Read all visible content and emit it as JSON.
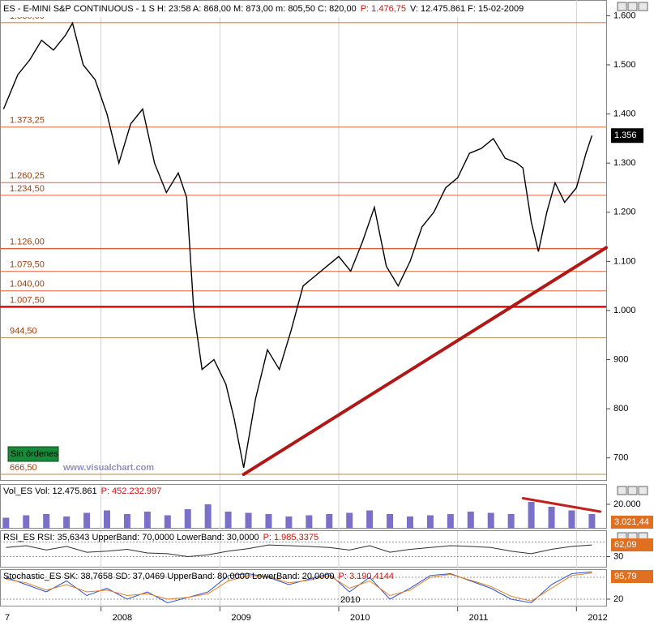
{
  "chart_data": [
    {
      "type": "line",
      "header": [
        {
          "text": "ES - E-MINI S&P CONTINUOUS - 1 S H: 23:58 A: 868,00 M: 873,00 m: 805,50 C: 820,00",
          "color": "#000000"
        },
        {
          "text": "P: 1.476,75",
          "color": "#d01010"
        },
        {
          "text": "V: 12.475.861 F: 15-02-2009",
          "color": "#000000"
        }
      ],
      "x": [
        2007.18,
        2007.3,
        2007.4,
        2007.5,
        2007.6,
        2007.7,
        2007.76,
        2007.85,
        2007.95,
        2008.05,
        2008.15,
        2008.25,
        2008.35,
        2008.45,
        2008.55,
        2008.65,
        2008.72,
        2008.78,
        2008.85,
        2008.95,
        2009.05,
        2009.12,
        2009.2,
        2009.3,
        2009.4,
        2009.5,
        2009.6,
        2009.7,
        2009.8,
        2009.9,
        2010.0,
        2010.1,
        2010.2,
        2010.3,
        2010.4,
        2010.5,
        2010.6,
        2010.7,
        2010.8,
        2010.9,
        2011.0,
        2011.1,
        2011.2,
        2011.3,
        2011.4,
        2011.5,
        2011.55,
        2011.62,
        2011.68,
        2011.75,
        2011.82,
        2011.9,
        2012.0,
        2012.08,
        2012.13
      ],
      "y": [
        1410,
        1480,
        1510,
        1550,
        1530,
        1560,
        1585,
        1500,
        1470,
        1400,
        1300,
        1380,
        1410,
        1300,
        1240,
        1280,
        1230,
        1000,
        880,
        900,
        850,
        780,
        680,
        820,
        920,
        880,
        960,
        1050,
        1070,
        1090,
        1110,
        1080,
        1140,
        1210,
        1090,
        1050,
        1100,
        1170,
        1200,
        1250,
        1270,
        1320,
        1330,
        1350,
        1310,
        1300,
        1290,
        1180,
        1120,
        1200,
        1260,
        1220,
        1250,
        1320,
        1356
      ],
      "color": "#000000",
      "xlim": [
        2007.15,
        2012.25
      ],
      "xticks": [
        {
          "value": 2007,
          "label": "7"
        },
        2008,
        2009,
        2010,
        2011,
        2012
      ],
      "ylim": [
        655,
        1632
      ],
      "yticks": [
        700,
        800,
        900,
        {
          "value": 1000,
          "label": "1.000"
        },
        {
          "value": 1100,
          "label": "1.100"
        },
        {
          "value": 1200,
          "label": "1.200"
        },
        {
          "value": 1300,
          "label": "1.300"
        },
        {
          "value": 1400,
          "label": "1.400"
        },
        {
          "value": 1500,
          "label": "1.500"
        },
        {
          "value": 1600,
          "label": "1.600"
        }
      ],
      "grid": "x",
      "levels": [
        {
          "value": 1586,
          "label": "1.586,00",
          "color": "#e0603a",
          "width": 1
        },
        {
          "value": 1373.25,
          "label": "1.373,25",
          "color": "#e0603a",
          "width": 1
        },
        {
          "value": 1260.25,
          "label": "1.260,25",
          "color": "#e0603a",
          "width": 1
        },
        {
          "value": 1234.5,
          "label": "1.234,50",
          "color": "#e0603a",
          "width": 1
        },
        {
          "value": 1126,
          "label": "1.126,00",
          "color": "#e0603a",
          "width": 1.5
        },
        {
          "value": 1079.5,
          "label": "1.079,50",
          "color": "#e0603a",
          "width": 1
        },
        {
          "value": 1040,
          "label": "1.040,00",
          "color": "#e0603a",
          "width": 1
        },
        {
          "value": 1007.5,
          "label": "1.007,50",
          "color": "#d01010",
          "width": 2.5
        },
        {
          "value": 944.5,
          "label": "944,50",
          "color": "#b08a50",
          "width": 1
        },
        {
          "value": 666.5,
          "label": "666,50",
          "color": "#b08a50",
          "width": 1
        }
      ],
      "trendline": {
        "x": [
          2009.2,
          2012.25
        ],
        "y": [
          666.5,
          1128
        ],
        "color": "#b01818"
      },
      "last_price": {
        "value": 1356,
        "label": "1.356"
      },
      "badge": "Sin órdenes",
      "watermark": "www.visualchart.com"
    },
    {
      "type": "bar",
      "header": [
        {
          "text": "Vol_ES Vol: 12.475.861",
          "color": "#000000"
        },
        {
          "text": "P: 452.232.997",
          "color": "#d01010"
        }
      ],
      "x": [
        2007.2,
        2007.37,
        2007.54,
        2007.71,
        2007.88,
        2008.05,
        2008.22,
        2008.39,
        2008.56,
        2008.73,
        2008.9,
        2009.07,
        2009.24,
        2009.41,
        2009.58,
        2009.75,
        2009.92,
        2010.09,
        2010.26,
        2010.43,
        2010.6,
        2010.77,
        2010.94,
        2011.11,
        2011.28,
        2011.45,
        2011.62,
        2011.79,
        2011.96,
        2012.13
      ],
      "values": [
        9000,
        11000,
        12000,
        10000,
        13000,
        15000,
        12000,
        14000,
        11000,
        16000,
        20000,
        14000,
        13000,
        12000,
        10000,
        11000,
        12000,
        13000,
        15000,
        12000,
        10000,
        11000,
        12000,
        14000,
        13000,
        12000,
        22000,
        18000,
        15000,
        12000
      ],
      "color": "#7a70c8",
      "ylim": [
        0,
        36000
      ],
      "yticks": [
        {
          "value": 20000,
          "label": "20.000"
        }
      ],
      "trendline": {
        "x": [
          2011.55,
          2012.2
        ],
        "y": [
          25000,
          14000
        ],
        "color": "#c02020"
      },
      "last_value": {
        "value": 3021.44,
        "label": "3.021,44"
      }
    },
    {
      "type": "line",
      "header": [
        {
          "text": "RSI_ES RSI: 35,6343 UpperBand: 70,0000 LowerBand: 30,0000",
          "color": "#000000"
        },
        {
          "text": "P: 1.985,3375",
          "color": "#d01010"
        }
      ],
      "series": [
        {
          "name": "RSI",
          "color": "#303030",
          "x": [
            2007.2,
            2007.37,
            2007.54,
            2007.71,
            2007.88,
            2008.05,
            2008.22,
            2008.39,
            2008.56,
            2008.73,
            2008.9,
            2009.07,
            2009.24,
            2009.41,
            2009.58,
            2009.75,
            2009.92,
            2010.09,
            2010.26,
            2010.43,
            2010.6,
            2010.77,
            2010.94,
            2011.11,
            2011.28,
            2011.45,
            2011.62,
            2011.79,
            2011.96,
            2012.13
          ],
          "values": [
            55,
            60,
            48,
            58,
            42,
            45,
            50,
            40,
            38,
            30,
            35,
            45,
            52,
            62,
            60,
            58,
            55,
            48,
            60,
            42,
            50,
            55,
            60,
            58,
            55,
            45,
            38,
            50,
            58,
            62
          ]
        }
      ],
      "ylim": [
        0,
        100
      ],
      "yticks": [
        30
      ],
      "bands": [
        70,
        30
      ],
      "last_value": {
        "value": 62.09,
        "label": "62,09"
      }
    },
    {
      "type": "line",
      "header": [
        {
          "text": "Stochastic_ES SK: 38,7658 SD: 37,0469 UpperBand: 80,0000 LowerBand: 20,0000",
          "color": "#000000"
        },
        {
          "text": "P: 3.190,4144",
          "color": "#d01010"
        }
      ],
      "series": [
        {
          "name": "SK",
          "color": "#3050d0",
          "x": [
            2007.2,
            2007.37,
            2007.54,
            2007.71,
            2007.88,
            2008.05,
            2008.22,
            2008.39,
            2008.56,
            2008.73,
            2008.9,
            2009.07,
            2009.24,
            2009.41,
            2009.58,
            2009.75,
            2009.92,
            2010.09,
            2010.26,
            2010.43,
            2010.6,
            2010.77,
            2010.94,
            2011.11,
            2011.28,
            2011.45,
            2011.62,
            2011.79,
            2011.96,
            2012.13
          ],
          "values": [
            80,
            60,
            40,
            70,
            30,
            50,
            20,
            40,
            10,
            25,
            40,
            85,
            90,
            80,
            60,
            75,
            90,
            40,
            80,
            20,
            50,
            85,
            90,
            70,
            50,
            20,
            10,
            60,
            90,
            95
          ]
        },
        {
          "name": "SD",
          "color": "#e08020",
          "x": [
            2007.2,
            2007.37,
            2007.54,
            2007.71,
            2007.88,
            2008.05,
            2008.22,
            2008.39,
            2008.56,
            2008.73,
            2008.9,
            2009.07,
            2009.24,
            2009.41,
            2009.58,
            2009.75,
            2009.92,
            2010.09,
            2010.26,
            2010.43,
            2010.6,
            2010.77,
            2010.94,
            2011.11,
            2011.28,
            2011.45,
            2011.62,
            2011.79,
            2011.96,
            2012.13
          ],
          "values": [
            75,
            65,
            45,
            60,
            40,
            45,
            30,
            35,
            20,
            25,
            35,
            70,
            85,
            82,
            65,
            72,
            85,
            50,
            70,
            30,
            45,
            80,
            88,
            72,
            55,
            28,
            15,
            50,
            85,
            92
          ]
        }
      ],
      "ylim": [
        0,
        100
      ],
      "yticks": [
        20
      ],
      "bands": [
        80,
        20
      ],
      "inner_label": "2010",
      "last_value": {
        "value": 95.79,
        "label": "95,79"
      }
    }
  ]
}
